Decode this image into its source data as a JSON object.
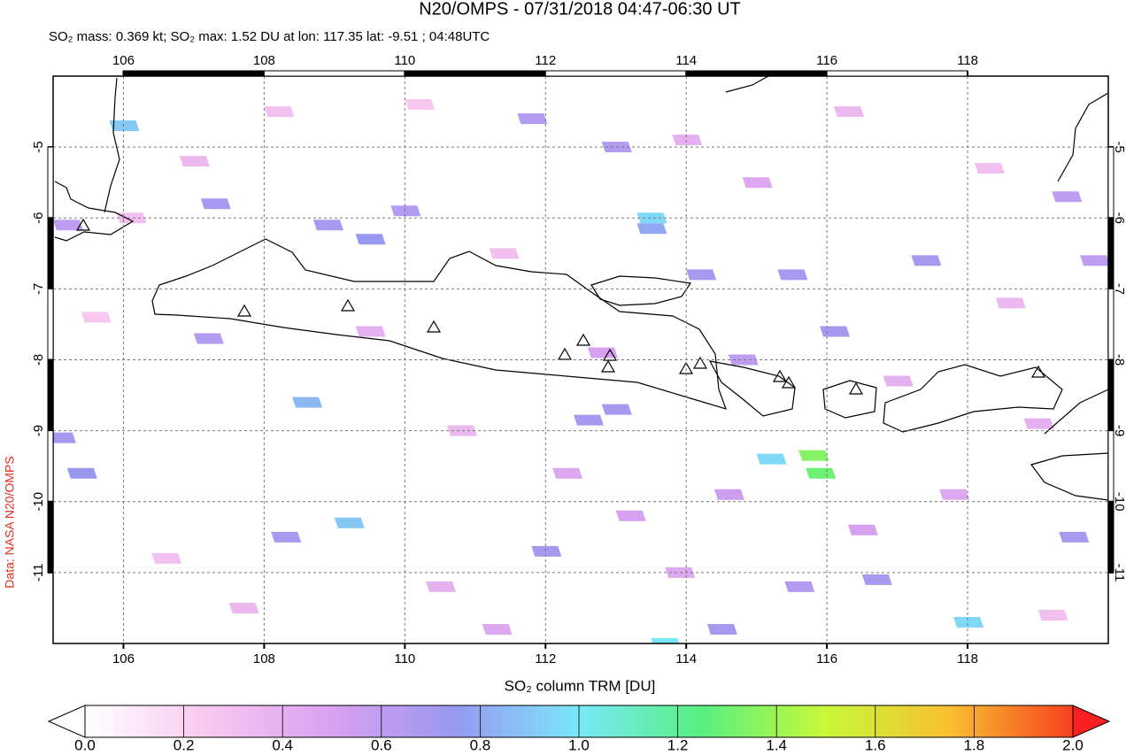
{
  "chart_data": {
    "type": "map",
    "title": "N20/OMPS - 07/31/2018 04:47-06:30 UT",
    "subtitle": "SO₂ mass: 0.369 kt; SO₂ max: 1.52 DU at lon: 117.35 lat: -9.51 ; 04:48UTC",
    "credit": "Data: NASA N20/OMPS",
    "xlim": [
      105,
      120
    ],
    "ylim": [
      -12,
      -4
    ],
    "xticks": [
      106,
      108,
      110,
      112,
      114,
      116,
      118
    ],
    "yticks": [
      -5,
      -6,
      -7,
      -8,
      -9,
      -10,
      -11
    ],
    "grid": true,
    "colorbar": {
      "label": "SO₂ column TRM [DU]",
      "lim": [
        0,
        2
      ],
      "ticks": [
        {
          "value": 0,
          "label": "0.0"
        },
        0.2,
        0.4,
        0.6,
        0.8,
        {
          "value": 1,
          "label": "1.0"
        },
        1.2,
        1.4,
        1.6,
        1.8,
        {
          "value": 2,
          "label": "2.0"
        }
      ],
      "colormap": [
        "#ffffff",
        "#f8c8f0",
        "#d8a0f0",
        "#9898f0",
        "#78e8f8",
        "#58f080",
        "#c8f838",
        "#f8c030",
        "#f84020"
      ]
    },
    "pixels": [
      {
        "lon": 106.0,
        "lat": -4.7,
        "value": 0.9
      },
      {
        "lon": 113.5,
        "lat": -6.0,
        "value": 0.95
      },
      {
        "lon": 113.5,
        "lat": -6.15,
        "value": 0.8
      },
      {
        "lon": 108.6,
        "lat": -8.6,
        "value": 0.85
      },
      {
        "lon": 105.4,
        "lat": -9.6,
        "value": 0.75
      },
      {
        "lon": 109.2,
        "lat": -10.3,
        "value": 0.9
      },
      {
        "lon": 115.8,
        "lat": -9.35,
        "value": 1.35
      },
      {
        "lon": 115.9,
        "lat": -9.6,
        "value": 1.3
      },
      {
        "lon": 115.2,
        "lat": -9.4,
        "value": 0.95
      },
      {
        "lon": 118.0,
        "lat": -11.7,
        "value": 0.95
      },
      {
        "lon": 113.7,
        "lat": -12.0,
        "value": 1.0
      },
      {
        "lon": 105.1,
        "lat": -9.1,
        "value": 0.7
      },
      {
        "lon": 112.6,
        "lat": -8.85,
        "value": 0.7
      },
      {
        "lon": 113.0,
        "lat": -8.7,
        "value": 0.7
      },
      {
        "lon": 114.2,
        "lat": -6.8,
        "value": 0.7
      },
      {
        "lon": 115.5,
        "lat": -6.8,
        "value": 0.7
      },
      {
        "lon": 117.4,
        "lat": -6.6,
        "value": 0.7
      },
      {
        "lon": 116.1,
        "lat": -7.6,
        "value": 0.7
      },
      {
        "lon": 119.5,
        "lat": -10.5,
        "value": 0.7
      },
      {
        "lon": 115.6,
        "lat": -11.2,
        "value": 0.65
      },
      {
        "lon": 116.7,
        "lat": -11.1,
        "value": 0.7
      },
      {
        "lon": 114.5,
        "lat": -11.8,
        "value": 0.7
      },
      {
        "lon": 109.5,
        "lat": -6.3,
        "value": 0.75
      },
      {
        "lon": 108.9,
        "lat": -6.1,
        "value": 0.7
      },
      {
        "lon": 111.8,
        "lat": -4.6,
        "value": 0.65
      },
      {
        "lon": 113.0,
        "lat": -5.0,
        "value": 0.65
      },
      {
        "lon": 107.3,
        "lat": -5.8,
        "value": 0.7
      },
      {
        "lon": 105.2,
        "lat": -6.1,
        "value": 0.6
      },
      {
        "lon": 119.8,
        "lat": -6.6,
        "value": 0.6
      },
      {
        "lon": 119.4,
        "lat": -5.7,
        "value": 0.6
      },
      {
        "lon": 107.2,
        "lat": -7.7,
        "value": 0.65
      },
      {
        "lon": 112.0,
        "lat": -10.7,
        "value": 0.7
      },
      {
        "lon": 108.3,
        "lat": -10.5,
        "value": 0.7
      },
      {
        "lon": 110.0,
        "lat": -5.9,
        "value": 0.65
      },
      {
        "lon": 114.8,
        "lat": -8.0,
        "value": 0.6
      },
      {
        "lon": 106.1,
        "lat": -6.0,
        "value": 0.3
      },
      {
        "lon": 107.0,
        "lat": -5.2,
        "value": 0.35
      },
      {
        "lon": 108.2,
        "lat": -4.5,
        "value": 0.3
      },
      {
        "lon": 109.5,
        "lat": -7.6,
        "value": 0.4
      },
      {
        "lon": 110.8,
        "lat": -9.0,
        "value": 0.35
      },
      {
        "lon": 111.4,
        "lat": -6.5,
        "value": 0.3
      },
      {
        "lon": 112.3,
        "lat": -9.6,
        "value": 0.45
      },
      {
        "lon": 113.2,
        "lat": -10.2,
        "value": 0.5
      },
      {
        "lon": 114.0,
        "lat": -4.9,
        "value": 0.4
      },
      {
        "lon": 115.0,
        "lat": -5.5,
        "value": 0.45
      },
      {
        "lon": 116.3,
        "lat": -4.5,
        "value": 0.35
      },
      {
        "lon": 117.0,
        "lat": -8.3,
        "value": 0.4
      },
      {
        "lon": 117.8,
        "lat": -9.9,
        "value": 0.45
      },
      {
        "lon": 118.6,
        "lat": -7.2,
        "value": 0.35
      },
      {
        "lon": 119.0,
        "lat": -8.9,
        "value": 0.4
      },
      {
        "lon": 106.6,
        "lat": -10.8,
        "value": 0.3
      },
      {
        "lon": 107.7,
        "lat": -11.5,
        "value": 0.35
      },
      {
        "lon": 110.5,
        "lat": -11.2,
        "value": 0.4
      },
      {
        "lon": 111.3,
        "lat": -11.8,
        "value": 0.45
      },
      {
        "lon": 112.8,
        "lat": -7.9,
        "value": 0.5
      },
      {
        "lon": 116.5,
        "lat": -10.4,
        "value": 0.5
      },
      {
        "lon": 118.3,
        "lat": -5.3,
        "value": 0.3
      },
      {
        "lon": 110.2,
        "lat": -4.4,
        "value": 0.25
      },
      {
        "lon": 105.6,
        "lat": -7.4,
        "value": 0.25
      },
      {
        "lon": 114.6,
        "lat": -9.9,
        "value": 0.55
      },
      {
        "lon": 113.9,
        "lat": -11.0,
        "value": 0.45
      },
      {
        "lon": 119.2,
        "lat": -11.6,
        "value": 0.3
      }
    ]
  }
}
